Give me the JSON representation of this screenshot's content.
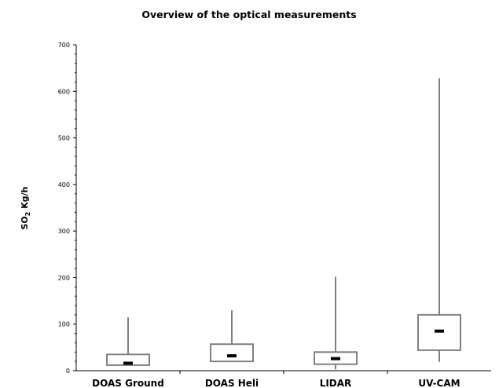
{
  "chart_data": {
    "type": "box",
    "title": "Overview of the optical measurements",
    "ylabel_main": "SO",
    "ylabel_sub": "2",
    "ylabel_rest": " Kg/h",
    "xlabel": "",
    "ylim": [
      0,
      700
    ],
    "yticks": [
      0,
      100,
      200,
      300,
      400,
      500,
      600,
      700
    ],
    "y_minor_step": 20,
    "grid": false,
    "categories": [
      "DOAS Ground",
      "DOAS Heli",
      "LIDAR",
      "UV-CAM"
    ],
    "boxes": [
      {
        "category": "DOAS Ground",
        "min": 12,
        "q1": 12,
        "median": 16,
        "q3": 35,
        "max": 115
      },
      {
        "category": "DOAS Heli",
        "min": 20,
        "q1": 20,
        "median": 32,
        "q3": 57,
        "max": 130
      },
      {
        "category": "LIDAR",
        "min": 3,
        "q1": 14,
        "median": 26,
        "q3": 40,
        "max": 202
      },
      {
        "category": "UV-CAM",
        "min": 19,
        "q1": 44,
        "median": 85,
        "q3": 120,
        "max": 628
      }
    ],
    "colors": {
      "box_stroke": "#808080",
      "whisker": "#000000",
      "median": "#000000",
      "axis": "#000000"
    }
  }
}
